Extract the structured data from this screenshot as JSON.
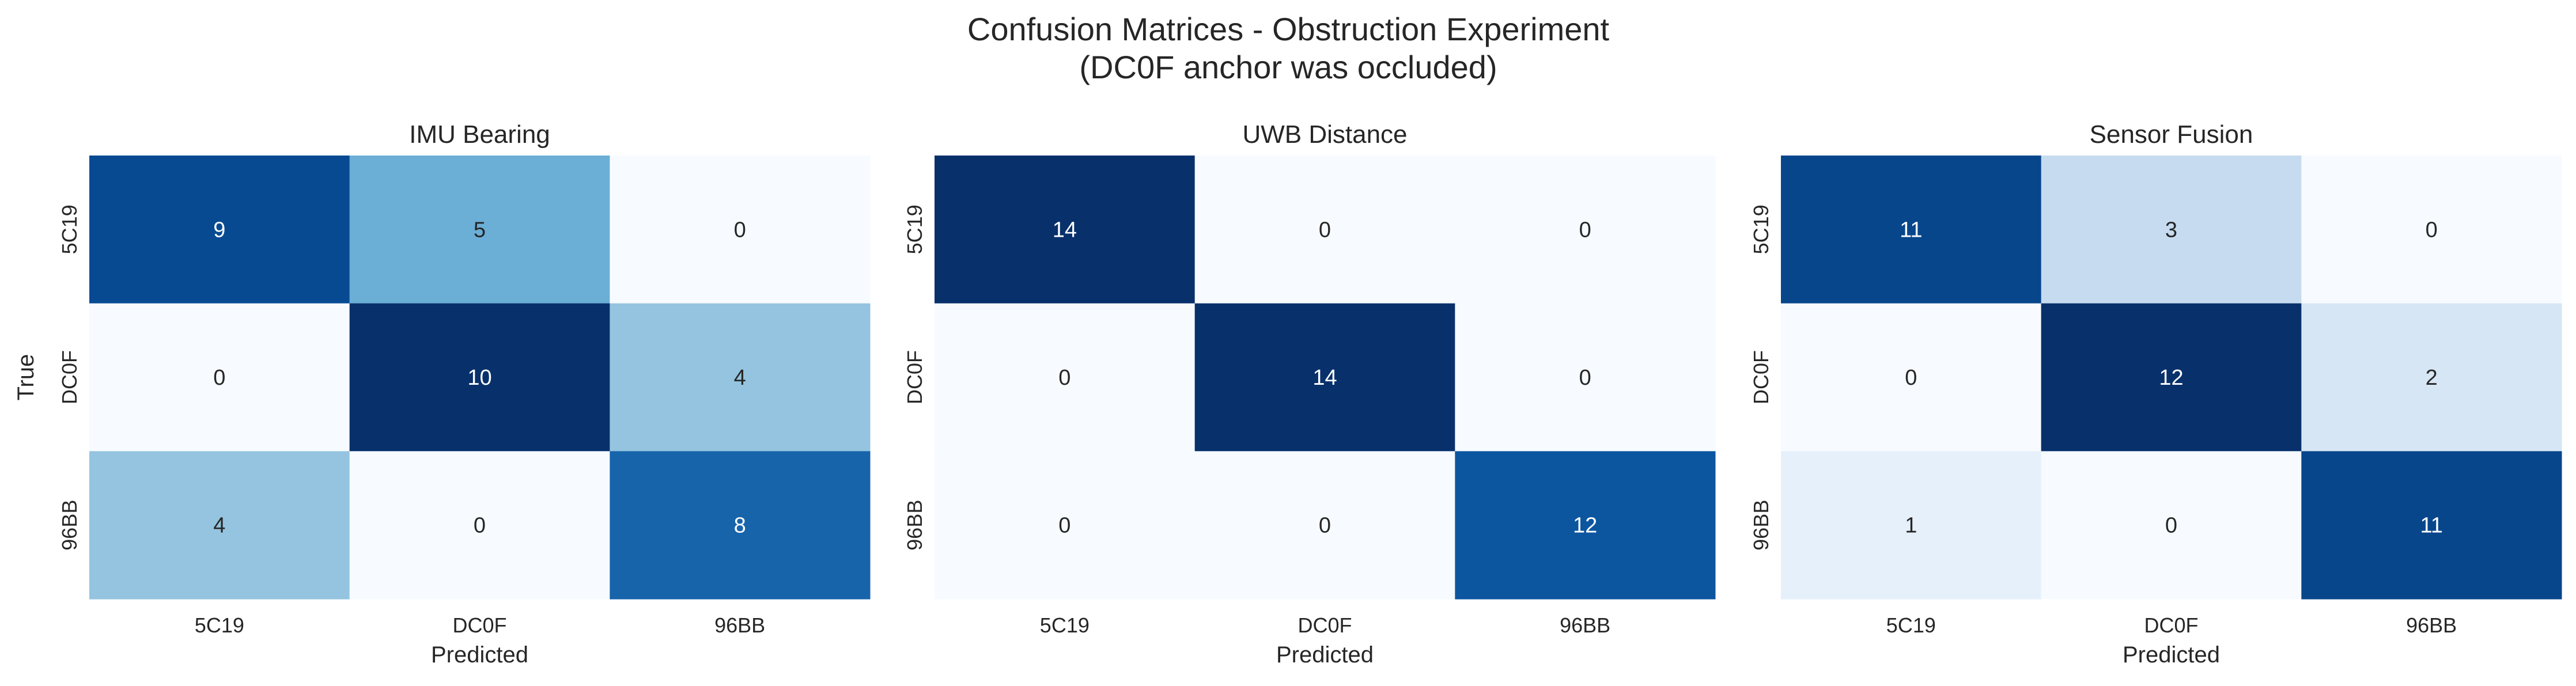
{
  "figure": {
    "title_line1": "Confusion Matrices - Obstruction Experiment",
    "title_line2": "(DC0F anchor was occluded)"
  },
  "chart_data": [
    {
      "type": "heatmap",
      "title": "IMU Bearing",
      "xlabel": "Predicted",
      "ylabel": "True",
      "x_categories": [
        "5C19",
        "DC0F",
        "96BB"
      ],
      "y_categories": [
        "5C19",
        "DC0F",
        "96BB"
      ],
      "values": [
        [
          9,
          5,
          0
        ],
        [
          0,
          10,
          4
        ],
        [
          4,
          0,
          8
        ]
      ],
      "colormap": "Blues",
      "colorbar": false,
      "annotated": true,
      "grid": false
    },
    {
      "type": "heatmap",
      "title": "UWB Distance",
      "xlabel": "Predicted",
      "ylabel": "",
      "x_categories": [
        "5C19",
        "DC0F",
        "96BB"
      ],
      "y_categories": [
        "5C19",
        "DC0F",
        "96BB"
      ],
      "values": [
        [
          14,
          0,
          0
        ],
        [
          0,
          14,
          0
        ],
        [
          0,
          0,
          12
        ]
      ],
      "colormap": "Blues",
      "colorbar": false,
      "annotated": true,
      "grid": false
    },
    {
      "type": "heatmap",
      "title": "Sensor Fusion",
      "xlabel": "Predicted",
      "ylabel": "",
      "x_categories": [
        "5C19",
        "DC0F",
        "96BB"
      ],
      "y_categories": [
        "5C19",
        "DC0F",
        "96BB"
      ],
      "values": [
        [
          11,
          3,
          0
        ],
        [
          0,
          12,
          2
        ],
        [
          1,
          0,
          11
        ]
      ],
      "colormap": "Blues",
      "colorbar": false,
      "annotated": true,
      "grid": false
    }
  ],
  "colors": {
    "blues_stops": [
      "#f7fbff",
      "#deebf7",
      "#c6dbef",
      "#9ecae1",
      "#6baed6",
      "#4292c6",
      "#2171b5",
      "#08519c",
      "#08306b"
    ],
    "text_dark": "#262626",
    "text_light": "#ffffff"
  }
}
